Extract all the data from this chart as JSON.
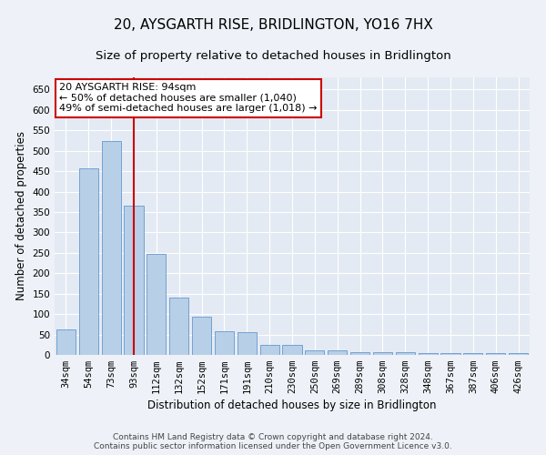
{
  "title": "20, AYSGARTH RISE, BRIDLINGTON, YO16 7HX",
  "subtitle": "Size of property relative to detached houses in Bridlington",
  "xlabel": "Distribution of detached houses by size in Bridlington",
  "ylabel": "Number of detached properties",
  "categories": [
    "34sqm",
    "54sqm",
    "73sqm",
    "93sqm",
    "112sqm",
    "132sqm",
    "152sqm",
    "171sqm",
    "191sqm",
    "210sqm",
    "230sqm",
    "250sqm",
    "269sqm",
    "289sqm",
    "308sqm",
    "328sqm",
    "348sqm",
    "367sqm",
    "387sqm",
    "406sqm",
    "426sqm"
  ],
  "values": [
    62,
    456,
    523,
    365,
    248,
    140,
    93,
    59,
    55,
    25,
    24,
    11,
    12,
    7,
    7,
    6,
    5,
    4,
    5,
    4,
    4
  ],
  "bar_color": "#b8cfe8",
  "bar_edge_color": "#6699cc",
  "vline_x": 3,
  "vline_color": "#cc0000",
  "annotation_text": "20 AYSGARTH RISE: 94sqm\n← 50% of detached houses are smaller (1,040)\n49% of semi-detached houses are larger (1,018) →",
  "annotation_box_color": "#ffffff",
  "annotation_box_edge_color": "#cc0000",
  "ylim": [
    0,
    680
  ],
  "yticks": [
    0,
    50,
    100,
    150,
    200,
    250,
    300,
    350,
    400,
    450,
    500,
    550,
    600,
    650
  ],
  "footer": "Contains HM Land Registry data © Crown copyright and database right 2024.\nContains public sector information licensed under the Open Government Licence v3.0.",
  "bg_color": "#eef2f8",
  "plot_bg_color": "#e4eaf4",
  "grid_color": "#ffffff",
  "title_fontsize": 11,
  "subtitle_fontsize": 9.5,
  "axis_label_fontsize": 8.5,
  "tick_fontsize": 7.5,
  "annotation_fontsize": 8,
  "footer_fontsize": 6.5
}
